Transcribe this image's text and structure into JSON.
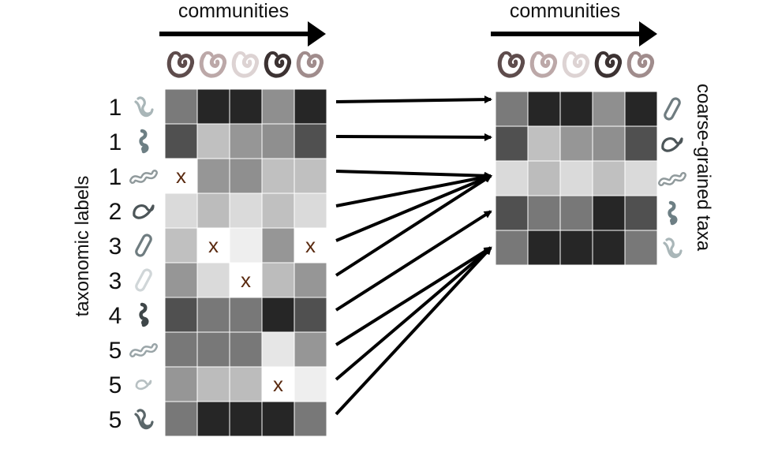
{
  "left_panel": {
    "header": "communities",
    "axis_label": "taxonomic labels",
    "row_labels": [
      "1",
      "1",
      "1",
      "2",
      "3",
      "3",
      "4",
      "5",
      "5",
      "5"
    ],
    "community_colors": [
      "#5e4c4c",
      "#bca8a8",
      "#ddd3d3",
      "#3c3232",
      "#a08c8c"
    ],
    "taxon_icons": [
      {
        "icon": "curved-bacterium-icon",
        "color": "#a9b6b8"
      },
      {
        "icon": "spirillum-bacterium-icon",
        "color": "#6d7f84"
      },
      {
        "icon": "wavy-rod-bacterium-icon",
        "color": "#909a9c"
      },
      {
        "icon": "vibrio-bacterium-icon",
        "color": "#4c5558"
      },
      {
        "icon": "rod-bacterium-icon",
        "color": "#6f7c80"
      },
      {
        "icon": "rod-bacterium-icon",
        "color": "#d0d6d8"
      },
      {
        "icon": "spirillum-bacterium-icon",
        "color": "#3f4749"
      },
      {
        "icon": "wavy-rod-bacterium-icon",
        "color": "#9aa5a8"
      },
      {
        "icon": "small-vibrio-bacterium-icon",
        "color": "#b7c0c2"
      },
      {
        "icon": "curved-bacterium-icon",
        "color": "#5a6669"
      }
    ],
    "matrix": [
      [
        "#7a7a7a",
        "#262626",
        "#262626",
        "#8f8f8f",
        "#262626"
      ],
      [
        "#505050",
        "#c0c0c0",
        "#969696",
        "#8f8f8f",
        "#505050"
      ],
      [
        "#ffffff",
        "#969696",
        "#8f8f8f",
        "#c0c0c0",
        "#c0c0c0"
      ],
      [
        "#dadada",
        "#bcbcbc",
        "#dadada",
        "#c0c0c0",
        "#dadada"
      ],
      [
        "#c0c0c0",
        "#ffffff",
        "#eeeeee",
        "#969696",
        "#ffffff"
      ],
      [
        "#969696",
        "#dadada",
        "#ffffff",
        "#bcbcbc",
        "#969696"
      ],
      [
        "#505050",
        "#787878",
        "#787878",
        "#262626",
        "#505050"
      ],
      [
        "#787878",
        "#787878",
        "#787878",
        "#e6e6e6",
        "#969696"
      ],
      [
        "#969696",
        "#bcbcbc",
        "#bcbcbc",
        "#ffffff",
        "#eeeeee"
      ],
      [
        "#787878",
        "#262626",
        "#262626",
        "#262626",
        "#787878"
      ]
    ],
    "missing_marker": "x",
    "missing_cells": [
      [
        2,
        0
      ],
      [
        4,
        1
      ],
      [
        4,
        4
      ],
      [
        5,
        2
      ],
      [
        8,
        3
      ]
    ]
  },
  "right_panel": {
    "header": "communities",
    "axis_label": "coarse-grained taxa",
    "community_colors": [
      "#5e4c4c",
      "#bca8a8",
      "#ddd3d3",
      "#3c3232",
      "#a08c8c"
    ],
    "taxon_icons": [
      {
        "icon": "rod-bacterium-icon",
        "color": "#6f7c80"
      },
      {
        "icon": "vibrio-bacterium-icon",
        "color": "#4c5558"
      },
      {
        "icon": "wavy-rod-bacterium-icon",
        "color": "#909a9c"
      },
      {
        "icon": "spirillum-bacterium-icon",
        "color": "#6d7f84"
      },
      {
        "icon": "curved-bacterium-icon",
        "color": "#a9b6b8"
      }
    ],
    "matrix": [
      [
        "#7a7a7a",
        "#262626",
        "#262626",
        "#8f8f8f",
        "#262626"
      ],
      [
        "#505050",
        "#c0c0c0",
        "#969696",
        "#8f8f8f",
        "#505050"
      ],
      [
        "#dadada",
        "#bcbcbc",
        "#dadada",
        "#c0c0c0",
        "#dadada"
      ],
      [
        "#505050",
        "#787878",
        "#787878",
        "#262626",
        "#505050"
      ],
      [
        "#787878",
        "#262626",
        "#262626",
        "#262626",
        "#787878"
      ]
    ]
  },
  "mapping": [
    0,
    1,
    2,
    2,
    2,
    2,
    3,
    4,
    4,
    4
  ]
}
